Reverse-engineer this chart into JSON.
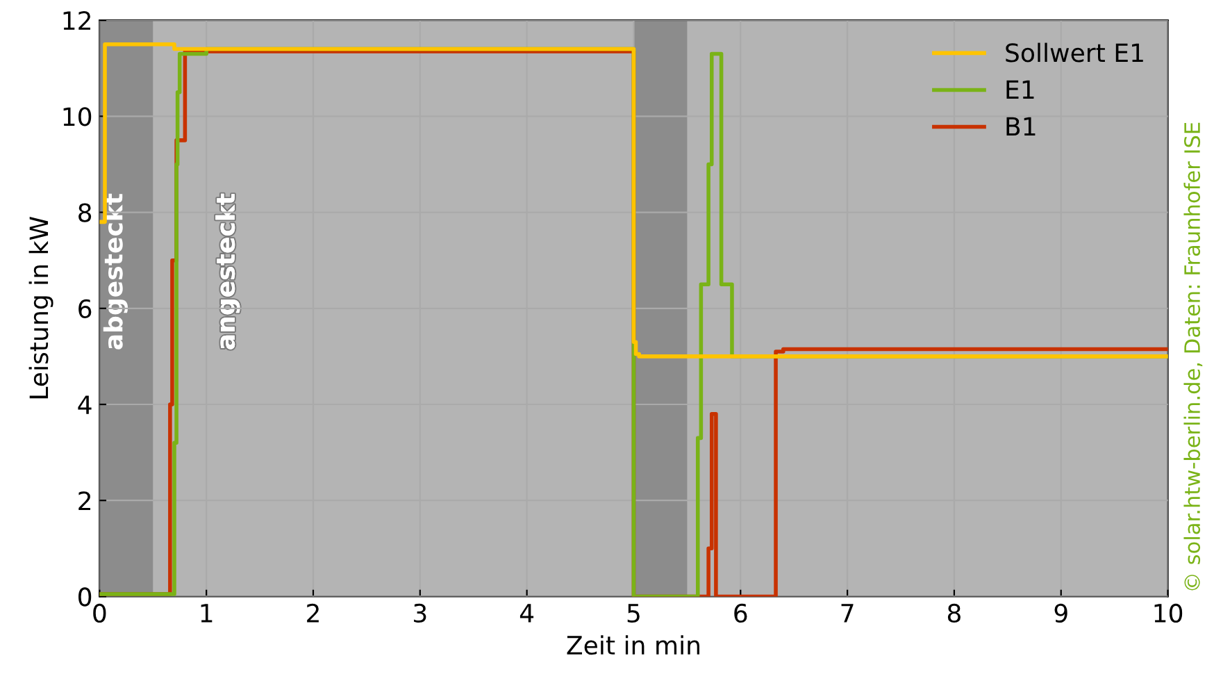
{
  "chart_data": {
    "type": "step",
    "xlabel": "Zeit in min",
    "ylabel": "Leistung in kW",
    "xlim": [
      0,
      10
    ],
    "ylim": [
      0,
      12
    ],
    "xticks": [
      0,
      1,
      2,
      3,
      4,
      5,
      6,
      7,
      8,
      9,
      10
    ],
    "yticks": [
      0,
      2,
      4,
      6,
      8,
      10,
      12
    ],
    "grid": true,
    "legend": "top right",
    "series": [
      {
        "name": "Sollwert E1",
        "color": "#ffc400",
        "x": [
          0,
          0.05,
          0.7,
          5.0,
          5.02,
          5.05,
          10
        ],
        "values": [
          7.8,
          11.5,
          11.4,
          5.3,
          5.05,
          5.0,
          5.0
        ]
      },
      {
        "name": "E1",
        "color": "#7ab317",
        "x": [
          0,
          0.7,
          0.72,
          0.73,
          0.75,
          1.0,
          5.0,
          5.6,
          5.63,
          5.7,
          5.73,
          5.82,
          5.92,
          10
        ],
        "values": [
          0.05,
          3.2,
          9.0,
          10.5,
          11.3,
          11.4,
          0,
          3.3,
          6.5,
          9.0,
          11.3,
          6.5,
          5.0,
          5.0
        ]
      },
      {
        "name": "B1",
        "color": "#c83200",
        "x": [
          0,
          0.66,
          0.68,
          0.72,
          0.8,
          5.0,
          5.7,
          5.73,
          5.77,
          6.33,
          6.4,
          10
        ],
        "values": [
          0.05,
          4.0,
          7.0,
          9.5,
          11.35,
          0,
          1.0,
          3.8,
          0,
          5.1,
          5.15,
          5.15
        ]
      }
    ],
    "bands": [
      {
        "axis": "x",
        "from": 0,
        "to": 0.5,
        "label": "abgesteckt",
        "color": "#8c8c8c"
      },
      {
        "axis": "x",
        "from": 5,
        "to": 5.5,
        "color": "#8c8c8c"
      }
    ],
    "annotations": [
      "angesteckt",
      "© solar.htw-berlin.de, Daten: Fraunhofer ISE"
    ]
  }
}
